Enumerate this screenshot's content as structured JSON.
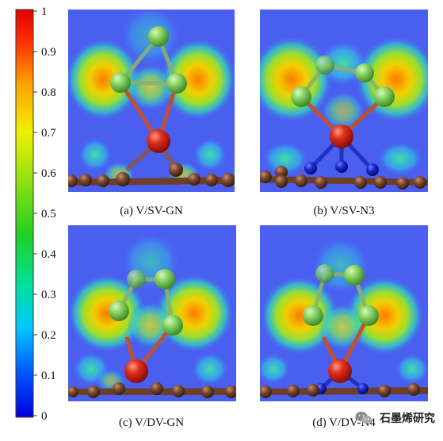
{
  "colorbar": {
    "ticks": [
      "1",
      "0.9",
      "0.8",
      "0.7",
      "0.6",
      "0.5",
      "0.4",
      "0.3",
      "0.2",
      "0.1",
      "0"
    ],
    "colors": [
      "#0000e0",
      "#0060ff",
      "#00c8ff",
      "#00e0a0",
      "#20d020",
      "#90e010",
      "#f0f000",
      "#ffa000",
      "#ff3000",
      "#e00000"
    ]
  },
  "panels": [
    {
      "caption": "(a) V/SV-GN"
    },
    {
      "caption": "(b) V/SV-N3"
    },
    {
      "caption": "(c) V/DV-GN"
    },
    {
      "caption": "(d) V/DV-N4"
    }
  ],
  "watermark": {
    "text": "石墨烯研究"
  },
  "palette": {
    "background": "#4a5ef0",
    "metal_atom": "#d8281c",
    "cluster_atom": "#7ecb5c",
    "carbon_atom": "#6b3f28",
    "nitrogen_atom": "#1a2ad0"
  }
}
